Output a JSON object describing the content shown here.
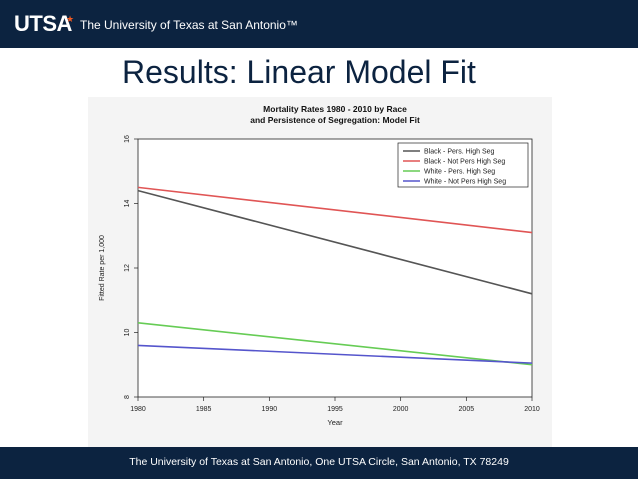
{
  "header": {
    "logo_text": "UTSA",
    "logo_mark": "★",
    "university": "The University of Texas at San Antonio™"
  },
  "slide": {
    "title": "Results: Linear Model Fit"
  },
  "footer": {
    "text": "The University of Texas at San Antonio, One UTSA Circle, San Antonio, TX 78249"
  },
  "colors": {
    "navy": "#0c2340",
    "accent": "#f15a22"
  },
  "chart_data": {
    "type": "line",
    "title_line1": "Mortality Rates 1980 - 2010 by Race",
    "title_line2": "and Persistence of Segregation: Model Fit",
    "xlabel": "Year",
    "ylabel": "Fitted Rate per 1,000",
    "xlim": [
      1980,
      2010
    ],
    "ylim": [
      8,
      16
    ],
    "x_ticks": [
      1980,
      1985,
      1990,
      1995,
      2000,
      2005,
      2010
    ],
    "y_ticks": [
      8,
      10,
      12,
      14,
      16
    ],
    "legend_position": "top-right",
    "grid": false,
    "x": [
      1980,
      2010
    ],
    "series": [
      {
        "name": "Black - Pers. High Seg",
        "color": "#555555",
        "values": [
          14.4,
          11.2
        ]
      },
      {
        "name": "Black - Not Pers High Seg",
        "color": "#e05555",
        "values": [
          14.5,
          13.1
        ]
      },
      {
        "name": "White - Pers. High Seg",
        "color": "#66cc55",
        "values": [
          10.3,
          9.0
        ]
      },
      {
        "name": "White - Not Pers High Seg",
        "color": "#5555cc",
        "values": [
          9.6,
          9.05
        ]
      }
    ]
  }
}
